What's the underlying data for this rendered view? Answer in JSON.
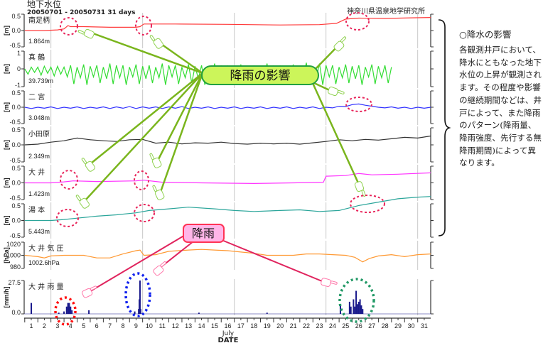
{
  "chart_data": {
    "type": "line",
    "title": "地下水位",
    "subtitle": "20050701 - 20050731 31 days",
    "source": "神奈川県温泉地学研究所",
    "xlabel": "DATE",
    "xmonth": "July",
    "xlim": [
      0.5,
      31.5
    ],
    "x_ticks": [
      "1",
      "2",
      "3",
      "4",
      "5",
      "6",
      "7",
      "8",
      "9",
      "10",
      "11",
      "12",
      "13",
      "14",
      "15",
      "16",
      "17",
      "18",
      "19",
      "20",
      "21",
      "22",
      "23",
      "24",
      "25",
      "26",
      "27",
      "28",
      "29",
      "30",
      "31"
    ],
    "grid_days": [
      2.5,
      9.5,
      16.5,
      23.5,
      30.5
    ],
    "panels": [
      {
        "name": "南足柄",
        "unit": "[m]",
        "reference": "1.864m",
        "ylim": [
          -0.5,
          0.5
        ],
        "yticks": [
          "0.5",
          "0.0",
          "-0.5"
        ],
        "color": "#ff3a3a",
        "points": [
          [
            0.5,
            0.0
          ],
          [
            2,
            0.0
          ],
          [
            3,
            0.02
          ],
          [
            3.5,
            0.05
          ],
          [
            3.8,
            0.15
          ],
          [
            4,
            0.12
          ],
          [
            5,
            0.12
          ],
          [
            7,
            0.1
          ],
          [
            9,
            0.1
          ],
          [
            9.3,
            0.12
          ],
          [
            9.6,
            0.2
          ],
          [
            12,
            0.2
          ],
          [
            16,
            0.19
          ],
          [
            20,
            0.17
          ],
          [
            23,
            0.18
          ],
          [
            24.3,
            0.22
          ],
          [
            25,
            0.35
          ],
          [
            26,
            0.38
          ],
          [
            28,
            0.37
          ],
          [
            30,
            0.39
          ],
          [
            31.5,
            0.4
          ]
        ]
      },
      {
        "name": "真 鶴",
        "unit": "[m]",
        "reference": "39.739m",
        "ylim": [
          -1,
          1
        ],
        "yticks": [
          "1",
          "0",
          "-1"
        ],
        "color": "#33dd33",
        "x_start": 0.5,
        "x_step": 0.25,
        "values": [
          0,
          -0.3,
          0.1,
          -0.2,
          0.1,
          -0.35,
          0.15,
          -0.25,
          0.1,
          -0.4,
          0.15,
          -0.3,
          0.1,
          -0.45,
          0.2,
          -0.85,
          0.1,
          -0.5,
          0.25,
          -0.9,
          0.15,
          -0.45,
          0.2,
          -0.8,
          0.1,
          -0.55,
          0.3,
          -0.85,
          0.2,
          -0.5,
          0.2,
          -0.9,
          0.1,
          -0.45,
          0.25,
          -0.85,
          0.15,
          -0.55,
          0.2,
          -0.8,
          0.1,
          -0.5,
          0.3,
          -0.9,
          0.2,
          -0.45,
          0.2,
          -0.85,
          0.1,
          -0.5,
          0.25,
          -0.8,
          0.15,
          -0.55,
          0.2,
          -0.9,
          0.1,
          -0.45,
          0.3,
          -0.85,
          0.2,
          -0.5,
          0.2,
          -0.8,
          0.1,
          -0.55,
          0.25,
          -0.9,
          0.15,
          -0.45,
          0.2,
          -0.85,
          0.1,
          -0.5,
          0.3,
          -0.8,
          0.2,
          -0.55,
          0.2,
          -0.9,
          0.1,
          -0.45,
          0.25,
          -0.85,
          0.15,
          -0.5,
          0.35,
          -0.8,
          0.1,
          -0.55,
          0.3,
          -0.9,
          0.2,
          -0.45,
          0.2,
          -0.85,
          0.1,
          -0.5,
          0.25,
          -0.8,
          0.15,
          -0.55,
          0.2,
          -0.9,
          0.1,
          -0.45,
          0.25,
          -0.85,
          0.15,
          -0.5,
          0.2,
          -0.8,
          0.1
        ]
      },
      {
        "name": "二 宮",
        "unit": "[m]",
        "reference": "3.048m",
        "ylim": [
          -0.5,
          0.5
        ],
        "yticks": [
          "0.5",
          "0.0",
          "-0.5"
        ],
        "color": "#3333ff",
        "x_start": 0.5,
        "x_step": 0.5,
        "values": [
          0,
          -0.04,
          0,
          -0.03,
          0.01,
          -0.04,
          0,
          -0.03,
          0.01,
          -0.04,
          0,
          -0.03,
          0.01,
          -0.04,
          0.01,
          -0.03,
          0.02,
          -0.04,
          0.01,
          -0.03,
          0.01,
          -0.04,
          0.01,
          -0.03,
          0.02,
          -0.04,
          0,
          -0.03,
          0.01,
          -0.04,
          0,
          -0.03,
          0.01,
          -0.04,
          0,
          -0.03,
          0.01,
          -0.04,
          0,
          -0.03,
          0.01,
          -0.04,
          0,
          -0.03,
          0.01,
          -0.04,
          0,
          -0.02,
          0.03,
          0.02,
          0.08,
          0.1,
          0.06,
          0.03,
          0,
          -0.02,
          0.01,
          -0.03,
          0,
          -0.04,
          0,
          -0.03,
          0
        ]
      },
      {
        "name": "小田原",
        "unit": "[m]",
        "reference": "2.349m",
        "ylim": [
          -0.5,
          0.5
        ],
        "yticks": [
          "0.5",
          "0.0",
          "-0.5"
        ],
        "color": "#333333",
        "points": [
          [
            0.5,
            0.0
          ],
          [
            1.5,
            0.02
          ],
          [
            2.5,
            0.08
          ],
          [
            3.5,
            0.12
          ],
          [
            4.5,
            0.2
          ],
          [
            5.5,
            0.15
          ],
          [
            6.5,
            0.12
          ],
          [
            7.5,
            0.1
          ],
          [
            8.5,
            0.15
          ],
          [
            9.5,
            0.16
          ],
          [
            10.5,
            0.05
          ],
          [
            11.5,
            0.08
          ],
          [
            12.5,
            0.03
          ],
          [
            13.5,
            0.06
          ],
          [
            14.5,
            0.05
          ],
          [
            15.5,
            0.08
          ],
          [
            16.5,
            0.04
          ],
          [
            17.5,
            0.02
          ],
          [
            18.5,
            0.05
          ],
          [
            19.5,
            0.03
          ],
          [
            20.5,
            0.05
          ],
          [
            21.5,
            0.02
          ],
          [
            22.5,
            0.06
          ],
          [
            23.5,
            0.1
          ],
          [
            24.5,
            0.15
          ],
          [
            25.5,
            0.12
          ],
          [
            26.5,
            0.16
          ],
          [
            27.5,
            0.14
          ],
          [
            28.5,
            0.18
          ],
          [
            29.5,
            0.22
          ],
          [
            30.5,
            0.2
          ],
          [
            31.5,
            0.26
          ]
        ]
      },
      {
        "name": "大 井",
        "unit": "[m]",
        "reference": "1.423m",
        "ylim": [
          -0.5,
          0.5
        ],
        "yticks": [
          "0.5",
          "0.0",
          "-0.5"
        ],
        "color": "#ff33ff",
        "points": [
          [
            0.5,
            0.0
          ],
          [
            2.5,
            0.0
          ],
          [
            3.5,
            0.03
          ],
          [
            4.2,
            0.06
          ],
          [
            6,
            0.04
          ],
          [
            9,
            0.06
          ],
          [
            9.6,
            0.08
          ],
          [
            11,
            0.02
          ],
          [
            14,
            0.0
          ],
          [
            18,
            -0.02
          ],
          [
            21,
            0.0
          ],
          [
            23.3,
            0.02
          ],
          [
            23.5,
            0.2
          ],
          [
            25,
            0.22
          ],
          [
            26,
            0.28
          ],
          [
            27,
            0.24
          ],
          [
            29,
            0.26
          ],
          [
            31.5,
            0.3
          ]
        ]
      },
      {
        "name": "湯 本",
        "unit": "[m]",
        "reference": "5.443m",
        "ylim": [
          -0.5,
          0.5
        ],
        "yticks": [
          "0.5",
          "0.0",
          "-0.5"
        ],
        "color": "#2aa59a",
        "points": [
          [
            0.5,
            0.0
          ],
          [
            2.5,
            0.0
          ],
          [
            3.5,
            0.03
          ],
          [
            4.5,
            0.07
          ],
          [
            6,
            0.13
          ],
          [
            7.5,
            0.17
          ],
          [
            9,
            0.23
          ],
          [
            10,
            0.3
          ],
          [
            11.5,
            0.35
          ],
          [
            13,
            0.4
          ],
          [
            15,
            0.35
          ],
          [
            16.5,
            0.3
          ],
          [
            18,
            0.27
          ],
          [
            20,
            0.3
          ],
          [
            21.5,
            0.32
          ],
          [
            23,
            0.27
          ],
          [
            24.5,
            0.3
          ],
          [
            26,
            0.45
          ],
          [
            27.5,
            0.55
          ],
          [
            29,
            0.65
          ],
          [
            30.5,
            0.7
          ],
          [
            31.5,
            0.72
          ]
        ]
      },
      {
        "name": "大 井 気 圧",
        "unit": "[hPa]",
        "reference": "1002.6hPa",
        "ylim": [
          980,
          1020
        ],
        "yticks": [
          "1020",
          "1000",
          "980"
        ],
        "color": "#ff9933",
        "points": [
          [
            0.5,
            1000
          ],
          [
            1.5,
            998
          ],
          [
            2,
            996
          ],
          [
            2.5,
            999
          ],
          [
            3.5,
            1000
          ],
          [
            5,
            1000
          ],
          [
            6,
            996
          ],
          [
            7,
            996
          ],
          [
            8,
            1002
          ],
          [
            9,
            1007
          ],
          [
            9.3,
            1008
          ],
          [
            9.6,
            1000
          ],
          [
            10.5,
            1001
          ],
          [
            11.5,
            1006
          ],
          [
            13,
            1008
          ],
          [
            14,
            1009
          ],
          [
            15,
            1008
          ],
          [
            16,
            1007
          ],
          [
            17,
            1005
          ],
          [
            18,
            1003
          ],
          [
            19,
            1000
          ],
          [
            20,
            1000
          ],
          [
            21,
            1000
          ],
          [
            22,
            1002
          ],
          [
            23,
            1002
          ],
          [
            24,
            1001
          ],
          [
            25,
            1000
          ],
          [
            25.7,
            997
          ],
          [
            26.3,
            990
          ],
          [
            26.8,
            995
          ],
          [
            27.5,
            999
          ],
          [
            28.5,
            1001
          ],
          [
            29.5,
            998
          ],
          [
            30.5,
            1001
          ],
          [
            31.5,
            1002
          ]
        ]
      },
      {
        "name": "大 井 雨 量",
        "unit": "[mm/h]",
        "ylim": [
          0,
          27.5
        ],
        "yticks": [
          "27.5",
          "0.0"
        ],
        "color": "#1a1a8c",
        "type": "bar",
        "points": [
          [
            1,
            9
          ],
          [
            3.1,
            1
          ],
          [
            3.5,
            2
          ],
          [
            3.7,
            6
          ],
          [
            3.8,
            9
          ],
          [
            3.9,
            9
          ],
          [
            4.0,
            6
          ],
          [
            4.1,
            3
          ],
          [
            5.4,
            3
          ],
          [
            8.9,
            2
          ],
          [
            9.2,
            4
          ],
          [
            9.25,
            12
          ],
          [
            9.3,
            27.5
          ],
          [
            9.35,
            4
          ],
          [
            13.8,
            1
          ],
          [
            19,
            1
          ],
          [
            24.6,
            8
          ],
          [
            25.3,
            10
          ],
          [
            25.4,
            6
          ],
          [
            25.6,
            12
          ],
          [
            25.7,
            6
          ],
          [
            25.8,
            19
          ],
          [
            25.9,
            8
          ],
          [
            26.0,
            10
          ],
          [
            26.1,
            12
          ],
          [
            26.2,
            7
          ],
          [
            26.3,
            4
          ]
        ]
      }
    ]
  },
  "annotations": {
    "effect_callout": "降雨の影響",
    "rain_callout": "降雨"
  },
  "side_note": {
    "heading": "○降水の影響",
    "body": "各観測井戸において、降水にともなった地下水位の上昇が観測されます。その程度や影響の継続期間などは、井戸によって、また降雨のパターン(降雨量、降雨強度、先行する無降雨期間)によって異なります。"
  }
}
